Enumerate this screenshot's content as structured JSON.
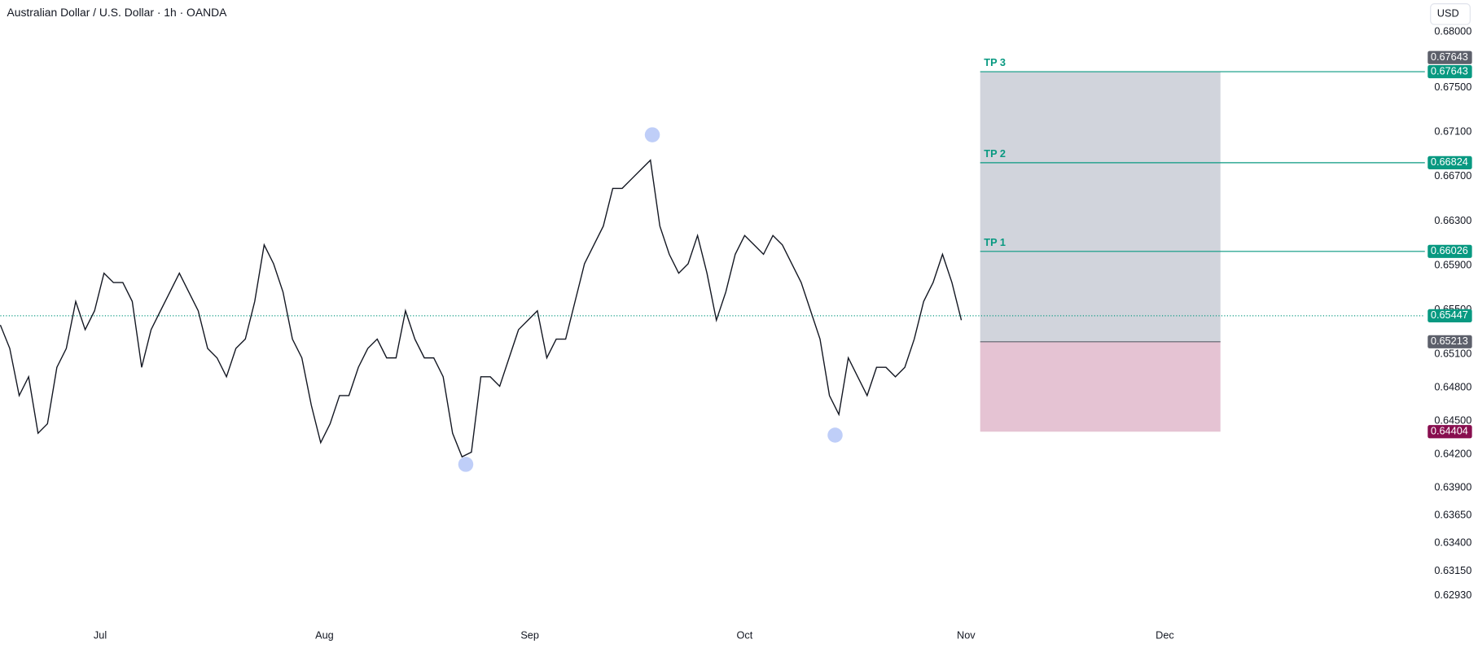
{
  "chart_data": {
    "type": "line",
    "title": "Australian Dollar / U.S. Dollar · 1h · OANDA",
    "currency": "USD",
    "color": "#131722",
    "values": [
      0.65364,
      0.65153,
      0.64729,
      0.64898,
      0.6439,
      0.64475,
      0.64983,
      0.65153,
      0.65576,
      0.65322,
      0.65492,
      0.6583,
      0.65746,
      0.65746,
      0.65576,
      0.64983,
      0.65322,
      0.65492,
      0.65661,
      0.6583,
      0.65661,
      0.65492,
      0.65153,
      0.65068,
      0.64898,
      0.65153,
      0.65237,
      0.65576,
      0.66085,
      0.65915,
      0.65661,
      0.65237,
      0.65068,
      0.64644,
      0.64305,
      0.64475,
      0.64729,
      0.64729,
      0.64983,
      0.65153,
      0.65237,
      0.65068,
      0.65068,
      0.65492,
      0.65237,
      0.65068,
      0.65068,
      0.64898,
      0.6439,
      0.64178,
      0.6422,
      0.64898,
      0.64898,
      0.64813,
      0.65068,
      0.65322,
      0.65407,
      0.65492,
      0.65068,
      0.65237,
      0.65237,
      0.65576,
      0.65915,
      0.66085,
      0.66254,
      0.66593,
      0.66593,
      0.66678,
      0.66763,
      0.66847,
      0.66254,
      0.66,
      0.6583,
      0.65915,
      0.66169,
      0.6583,
      0.65407,
      0.65661,
      0.66,
      0.66169,
      0.66085,
      0.66,
      0.66169,
      0.66085,
      0.65915,
      0.65746,
      0.65492,
      0.65237,
      0.64729,
      0.64559,
      0.65068,
      0.64898,
      0.64729,
      0.64983,
      0.64983,
      0.64898,
      0.64983,
      0.65237,
      0.65576,
      0.65746,
      0.66,
      0.65746,
      0.65407
    ],
    "xlim": [
      0,
      151
    ],
    "xticks": [
      {
        "value": 10.6,
        "label": "Jul"
      },
      {
        "value": 34.4,
        "label": "Aug"
      },
      {
        "value": 56.2,
        "label": "Sep"
      },
      {
        "value": 79,
        "label": "Oct"
      },
      {
        "value": 102.5,
        "label": "Nov"
      },
      {
        "value": 123.6,
        "label": "Dec"
      }
    ],
    "ylim": [
      0.62695,
      0.68288
    ],
    "yticks": [
      {
        "value": 0.68,
        "label": "0.68000"
      },
      {
        "value": 0.675,
        "label": "0.67500"
      },
      {
        "value": 0.671,
        "label": "0.67100"
      },
      {
        "value": 0.667,
        "label": "0.66700"
      },
      {
        "value": 0.663,
        "label": "0.66300"
      },
      {
        "value": 0.659,
        "label": "0.65900"
      },
      {
        "value": 0.655,
        "label": "0.65500"
      },
      {
        "value": 0.651,
        "label": "0.65100"
      },
      {
        "value": 0.648,
        "label": "0.64800"
      },
      {
        "value": 0.645,
        "label": "0.64500"
      },
      {
        "value": 0.642,
        "label": "0.64200"
      },
      {
        "value": 0.639,
        "label": "0.63900"
      },
      {
        "value": 0.6365,
        "label": "0.63650"
      },
      {
        "value": 0.634,
        "label": "0.63400"
      },
      {
        "value": 0.6315,
        "label": "0.63150"
      },
      {
        "value": 0.6293,
        "label": "0.62930"
      }
    ],
    "markers": {
      "x": [
        49.4,
        69.2,
        88.6
      ],
      "values": [
        0.6411,
        0.67075,
        0.64373
      ],
      "color": "#b4c5f7"
    },
    "last_price": {
      "value": 0.65447,
      "color": "#089981"
    },
    "levels": [
      {
        "name": "TP 3",
        "value": 0.67643,
        "color": "#089981"
      },
      {
        "name": "TP 2",
        "value": 0.66824,
        "color": "#089981"
      },
      {
        "name": "TP 1",
        "value": 0.66026,
        "color": "#089981"
      }
    ],
    "position": {
      "target": 0.67643,
      "entry": 0.65213,
      "stop": 0.64404,
      "target_color": "#d1d4dc",
      "stop_color": "#e5c3d3",
      "badge_color": "#5d606b",
      "stop_badge_color": "#880e4f"
    }
  }
}
